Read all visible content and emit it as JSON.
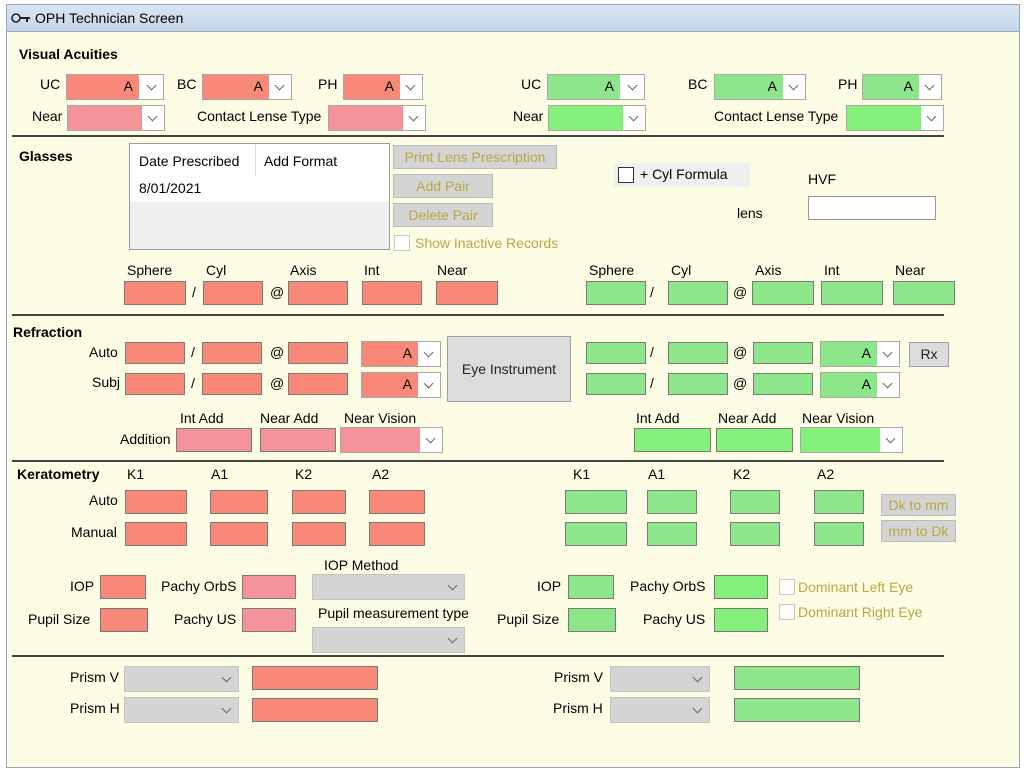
{
  "window": {
    "title": "OPH Technician Screen"
  },
  "visual_acuities": {
    "heading": "Visual Acuities",
    "uc": "UC",
    "bc": "BC",
    "ph": "PH",
    "near": "Near",
    "contact_lens_type": "Contact Lense Type",
    "value": "A"
  },
  "glasses": {
    "heading": "Glasses",
    "columns": [
      "Date Prescribed",
      "Add Format"
    ],
    "rows": [
      [
        "8/01/2021",
        ""
      ]
    ],
    "print_lens_prescription": "Print Lens Prescription",
    "add_pair": "Add Pair",
    "delete_pair": "Delete Pair",
    "show_inactive_records": "Show Inactive Records",
    "cyl_formula": "+ Cyl Formula",
    "hvf": "HVF",
    "lens": "lens",
    "sphere": "Sphere",
    "cyl": "Cyl",
    "axis": "Axis",
    "int": "Int",
    "near": "Near"
  },
  "refraction": {
    "heading": "Refraction",
    "auto": "Auto",
    "subj": "Subj",
    "addition": "Addition",
    "eye_instrument": "Eye Instrument",
    "rx": "Rx",
    "int_add": "Int Add",
    "near_add": "Near Add",
    "near_vision": "Near Vision",
    "value": "A"
  },
  "keratometry": {
    "heading": "Keratometry",
    "k1": "K1",
    "a1": "A1",
    "k2": "K2",
    "a2": "A2",
    "auto": "Auto",
    "manual": "Manual",
    "dk_to_mm": "Dk to mm",
    "mm_to_dk": "mm to Dk"
  },
  "measurements": {
    "iop": "IOP",
    "pupil_size": "Pupil Size",
    "pachy_orbs": "Pachy OrbS",
    "pachy_us": "Pachy US",
    "iop_method": "IOP Method",
    "pupil_measurement_type": "Pupil  measurement type",
    "dominant_left_eye": "Dominant Left Eye",
    "dominant_right_eye": "Dominant Right Eye"
  },
  "prism": {
    "v": "Prism V",
    "h": "Prism H"
  },
  "separators": {
    "slash": "/",
    "at": "@"
  },
  "colors": {
    "right_eye": "#f88878",
    "left_eye": "#8ee68a",
    "window_bg": "#fdfde6",
    "button_text": "#b8a843"
  }
}
